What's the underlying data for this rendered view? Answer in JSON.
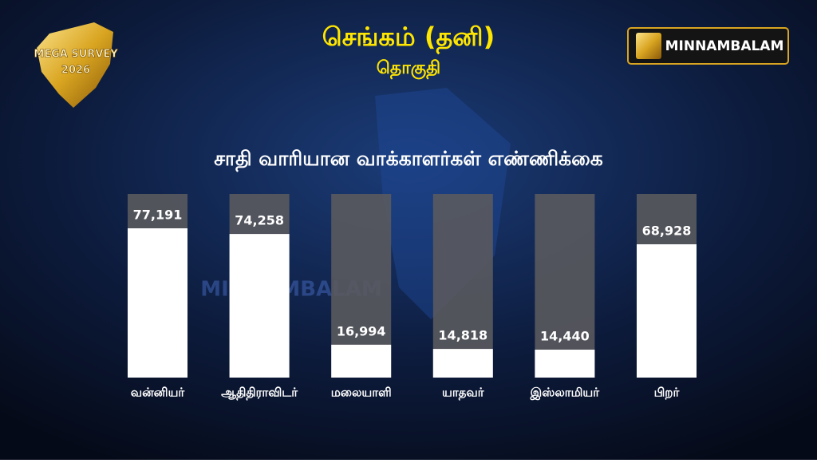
{
  "branding": {
    "survey": "MEGA SURVEY",
    "year": "2026",
    "logo": "MINNAMBALAM"
  },
  "chart_data": {
    "type": "bar",
    "title": "செங்கம் (தனி)",
    "subtitle": "தொகுதி",
    "chart_title": "சாதி வாரியான வாக்காளர்கள்  எண்ணிக்கை",
    "categories": [
      "வன்னியர்",
      "ஆதிதிராவிடர்",
      "மலையாளி",
      "யாதவர்",
      "இஸ்லாமியர்",
      "பிறர்"
    ],
    "values": [
      77191,
      74258,
      16994,
      14818,
      14440,
      68928
    ],
    "value_labels": [
      "77,191",
      "74,258",
      "16,994",
      "14,818",
      "14,440",
      "68,928"
    ],
    "color": "#ffffff"
  }
}
